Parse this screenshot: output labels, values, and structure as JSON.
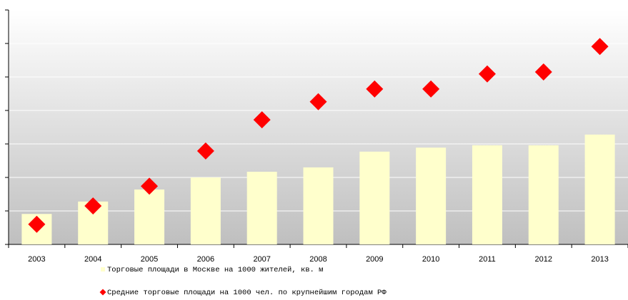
{
  "chart_data": {
    "type": "bar",
    "categories": [
      "2003",
      "2004",
      "2005",
      "2006",
      "2007",
      "2008",
      "2009",
      "2010",
      "2011",
      "2012",
      "2013"
    ],
    "series": [
      {
        "name": "Торговые площади в Москве на 1000 жителей, кв. м",
        "type": "bar",
        "color": "#ffffcc",
        "values": [
          0.91,
          1.28,
          1.64,
          2.0,
          2.17,
          2.3,
          2.77,
          2.89,
          2.96,
          2.96,
          3.28
        ]
      },
      {
        "name": "Средние торговые площади на 1000 чел. по крупнейшим городам РФ",
        "type": "scatter",
        "color": "#ff0000",
        "values": [
          0.6,
          1.15,
          1.74,
          2.79,
          3.72,
          4.26,
          4.64,
          4.64,
          5.09,
          5.15,
          5.91
        ]
      }
    ],
    "ylim": [
      0,
      7
    ],
    "yticks": [
      0,
      1,
      2,
      3,
      4,
      5,
      6,
      7
    ],
    "grid": true
  }
}
